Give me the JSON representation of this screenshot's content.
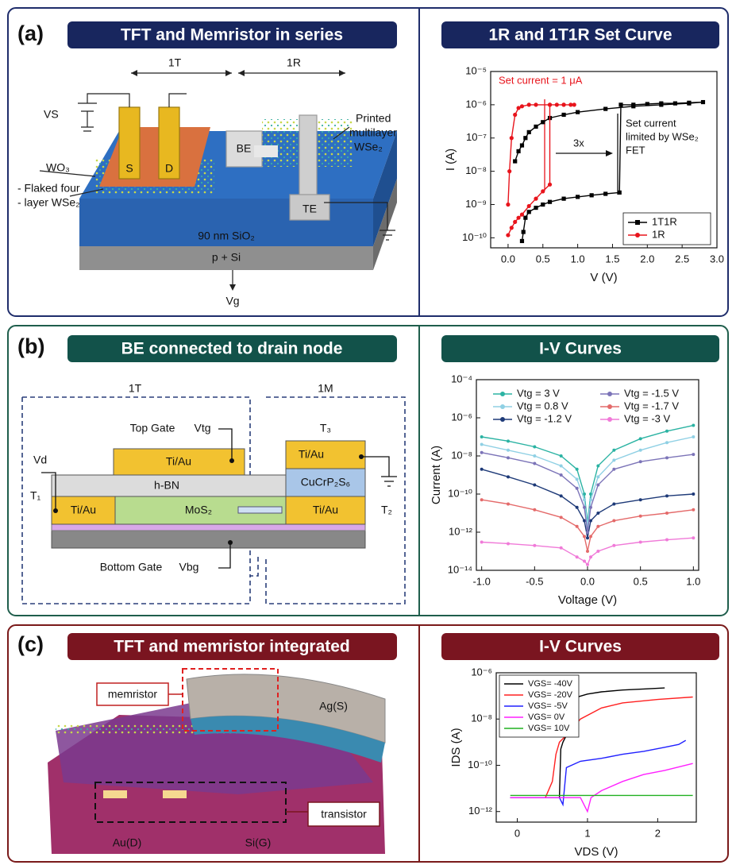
{
  "panels": [
    {
      "label": "(a)",
      "title": "TFT and Memristor in series",
      "diagram": {
        "labels": [
          "1T",
          "1R",
          "VS",
          "S",
          "D",
          "BE",
          "Printed",
          "multilayer",
          "WSe₂",
          "WO₃",
          "- Flaked four",
          "- layer WSe₂",
          "TE",
          "90 nm SiO₂",
          "p + Si",
          "Vg"
        ]
      }
    },
    {
      "label": "(b)",
      "title": "BE connected to drain node",
      "diagram": {
        "labels": [
          "1T",
          "1M",
          "Top Gate",
          "Vtg",
          "T₃",
          "Vd",
          "Ti/Au",
          "Ti/Au",
          "h-BN",
          "CuCrP₂S₆",
          "T₁",
          "Ti/Au",
          "MoS₂",
          "Ti/Au",
          "T₂",
          "Bottom Gate",
          "Vbg"
        ]
      }
    },
    {
      "label": "(c)",
      "title": "TFT and memristor integrated",
      "diagram": {
        "labels": [
          "memristor",
          "Ag(S)",
          "transistor",
          "Au(D)",
          "Si(G)"
        ]
      }
    }
  ],
  "chart_data": [
    {
      "type": "line",
      "title": "1R and 1T1R Set Curve",
      "xlabel": "V (V)",
      "ylabel": "I (A)",
      "y_log": true,
      "xlim": [
        -0.25,
        3.0
      ],
      "xticks": [
        {
          "value": 0,
          "label": "0.0"
        },
        0.5,
        {
          "value": 1,
          "label": "1.0"
        },
        1.5,
        {
          "value": 2,
          "label": "2.0"
        },
        2.5,
        {
          "value": 3,
          "label": "3.0"
        }
      ],
      "ylim": [
        5e-11,
        1e-05
      ],
      "yticks": [
        {
          "value": 1e-10,
          "label": "10⁻¹⁰"
        },
        {
          "value": 1e-09,
          "label": "10⁻⁹"
        },
        {
          "value": 1e-08,
          "label": "10⁻⁸"
        },
        {
          "value": 1e-07,
          "label": "10⁻⁷"
        },
        {
          "value": 1e-06,
          "label": "10⁻⁶"
        },
        {
          "value": 1e-05,
          "label": "10⁻⁵"
        }
      ],
      "legend": "lower right",
      "annotations": [
        "Set current = 1 μA",
        "3x",
        "Set current",
        "limited by WSe₂",
        "FET"
      ],
      "series": [
        {
          "name": "1T1R",
          "color": "#000000",
          "marker": "square",
          "x": [
            0.2,
            0.22,
            0.25,
            0.3,
            0.4,
            0.5,
            0.6,
            0.8,
            1.0,
            1.2,
            1.4,
            1.6,
            1.62,
            1.8,
            2.0,
            2.2,
            2.4,
            2.6,
            2.8,
            2.6,
            2.2,
            1.8,
            1.4,
            1.0,
            0.8,
            0.6,
            0.5,
            0.4,
            0.3,
            0.25,
            0.2,
            0.15,
            0.1
          ],
          "values": [
            8e-11,
            1.5e-10,
            4e-10,
            6e-10,
            8e-10,
            1e-09,
            1.2e-09,
            1.5e-09,
            1.7e-09,
            1.9e-09,
            2.1e-09,
            2.3e-09,
            1e-06,
            1e-06,
            1.05e-06,
            1.1e-06,
            1.1e-06,
            1.15e-06,
            1.2e-06,
            1.1e-06,
            1e-06,
            9e-07,
            7.5e-07,
            6e-07,
            5e-07,
            4e-07,
            3e-07,
            2.2e-07,
            1.5e-07,
            1e-07,
            6e-08,
            4e-08,
            2e-08
          ]
        },
        {
          "name": "1R",
          "color": "#e8141c",
          "marker": "circle",
          "x": [
            0.0,
            0.05,
            0.1,
            0.15,
            0.2,
            0.3,
            0.4,
            0.5,
            0.6,
            0.6,
            0.7,
            0.8,
            0.9,
            0.95,
            0.8,
            0.6,
            0.4,
            0.3,
            0.2,
            0.15,
            0.1,
            0.05,
            0.02,
            0.0
          ],
          "values": [
            1.2e-10,
            2e-10,
            3e-10,
            4e-10,
            5e-10,
            9e-10,
            1.5e-09,
            2.5e-09,
            4e-09,
            1e-06,
            1e-06,
            1e-06,
            1e-06,
            1e-06,
            1e-06,
            1e-06,
            1e-06,
            1e-06,
            9e-07,
            8e-07,
            5e-07,
            1e-07,
            1e-08,
            1e-09
          ]
        }
      ]
    },
    {
      "type": "line",
      "title": "I-V Curves",
      "xlabel": "Voltage (V)",
      "ylabel": "Current (A)",
      "y_log": true,
      "xlim": [
        -1.05,
        1.05
      ],
      "xticks": [
        {
          "value": -1,
          "label": "-1.0"
        },
        -0.5,
        {
          "value": 0,
          "label": "0.0"
        },
        0.5,
        {
          "value": 1,
          "label": "1.0"
        }
      ],
      "ylim": [
        1e-14,
        0.0001
      ],
      "yticks": [
        {
          "value": 1e-14,
          "label": "10⁻¹⁴"
        },
        {
          "value": 1e-12,
          "label": "10⁻¹²"
        },
        {
          "value": 1e-10,
          "label": "10⁻¹⁰"
        },
        {
          "value": 1e-08,
          "label": "10⁻⁸"
        },
        {
          "value": 1e-06,
          "label": "10⁻⁶"
        },
        {
          "value": 0.0001,
          "label": "10⁻⁴"
        }
      ],
      "legend": "upper",
      "x": [
        -1,
        -0.75,
        -0.5,
        -0.25,
        -0.1,
        -0.03,
        0,
        0.03,
        0.1,
        0.25,
        0.5,
        0.75,
        1
      ],
      "series": [
        {
          "name": "Vtg = 3 V",
          "color": "#2bb3a3",
          "marker": "circle",
          "values": [
            1e-07,
            6e-08,
            3e-08,
            1e-08,
            2e-09,
            1e-10,
            3e-12,
            1e-10,
            3e-09,
            2e-08,
            8e-08,
            2e-07,
            4e-07
          ]
        },
        {
          "name": "Vtg = 0.8 V",
          "color": "#8fd0e4",
          "marker": "circle",
          "values": [
            4e-08,
            2e-08,
            1e-08,
            3e-09,
            6e-10,
            5e-11,
            2e-12,
            5e-11,
            8e-10,
            6e-09,
            2e-08,
            5e-08,
            1e-07
          ]
        },
        {
          "name": "Vtg = -1.2 V",
          "color": "#1e3a78",
          "marker": "circle",
          "values": [
            2e-09,
            8e-10,
            3e-10,
            8e-11,
            2e-11,
            4e-12,
            5e-13,
            4e-12,
            1e-11,
            3e-11,
            5e-11,
            8e-11,
            1e-10
          ]
        },
        {
          "name": "Vtg = -1.5 V",
          "color": "#7c74b8",
          "marker": "circle",
          "values": [
            1.5e-08,
            8e-09,
            4e-09,
            1e-09,
            2e-10,
            2e-11,
            1e-12,
            2e-11,
            3e-10,
            2e-09,
            5e-09,
            8e-09,
            1.2e-08
          ]
        },
        {
          "name": "Vtg = -1.7 V",
          "color": "#e46a6a",
          "marker": "circle",
          "values": [
            5e-11,
            3e-11,
            1.5e-11,
            6e-12,
            2e-12,
            6e-13,
            1e-13,
            6e-13,
            2e-12,
            4e-12,
            7e-12,
            1e-11,
            1.5e-11
          ]
        },
        {
          "name": "Vtg = -3 V",
          "color": "#f07ad8",
          "marker": "circle",
          "values": [
            3e-13,
            2.5e-13,
            2e-13,
            1.5e-13,
            5e-14,
            3e-14,
            2e-14,
            5e-14,
            1e-13,
            2e-13,
            3e-13,
            4e-13,
            5e-13
          ]
        }
      ]
    },
    {
      "type": "line",
      "title": "I-V Curves",
      "xlabel": "VDS (V)",
      "ylabel": "IDS (A)",
      "y_log": true,
      "xlim": [
        -0.3,
        2.55
      ],
      "xticks": [
        0,
        1,
        2
      ],
      "ylim": [
        3.5e-13,
        1e-06
      ],
      "yticks": [
        {
          "value": 1e-12,
          "label": "10⁻¹²"
        },
        {
          "value": 1e-10,
          "label": "10⁻¹⁰"
        },
        {
          "value": 1e-08,
          "label": "10⁻⁸"
        },
        {
          "value": 1e-06,
          "label": "10⁻⁶"
        }
      ],
      "legend": "upper left",
      "series": [
        {
          "name": "VGS= -40V",
          "color": "#000000",
          "x": [
            -0.1,
            0.3,
            0.6,
            0.62,
            0.65,
            0.7,
            0.8,
            1.0,
            1.2,
            1.5,
            1.8,
            2.1
          ],
          "values": [
            4e-12,
            4e-12,
            4e-12,
            5e-10,
            1e-09,
            2e-09,
            8e-08,
            1.2e-07,
            1.5e-07,
            1.8e-07,
            2e-07,
            2.2e-07
          ]
        },
        {
          "name": "VGS= -20V",
          "color": "#ff2020",
          "x": [
            -0.1,
            0.4,
            0.5,
            0.55,
            0.6,
            0.7,
            0.9,
            1.2,
            1.5,
            2.0,
            2.5
          ],
          "values": [
            4e-12,
            4e-12,
            2e-11,
            3e-10,
            1e-09,
            2e-09,
            1e-08,
            3e-08,
            5e-08,
            7e-08,
            9e-08
          ]
        },
        {
          "name": "VGS= -5V",
          "color": "#2020ff",
          "x": [
            -0.1,
            0.6,
            0.65,
            0.7,
            0.9,
            1.2,
            1.5,
            1.8,
            2.1,
            2.3,
            2.4
          ],
          "values": [
            4e-12,
            4e-12,
            2e-12,
            8e-11,
            1.5e-10,
            2e-10,
            3e-10,
            4e-10,
            6e-10,
            8e-10,
            1.2e-09
          ]
        },
        {
          "name": "VGS= 0V",
          "color": "#ff20ff",
          "x": [
            -0.1,
            0.9,
            1.0,
            1.05,
            1.2,
            1.5,
            1.8,
            2.1,
            2.5
          ],
          "values": [
            4e-12,
            4e-12,
            1e-12,
            4e-12,
            8e-12,
            2e-11,
            4e-11,
            6e-11,
            1.2e-10
          ]
        },
        {
          "name": "VGS= 10V",
          "color": "#20b020",
          "x": [
            -0.1,
            0.5,
            1.0,
            1.5,
            2.0,
            2.5
          ],
          "values": [
            5e-12,
            5e-12,
            5e-12,
            5e-12,
            5e-12,
            5e-12
          ]
        }
      ]
    }
  ]
}
